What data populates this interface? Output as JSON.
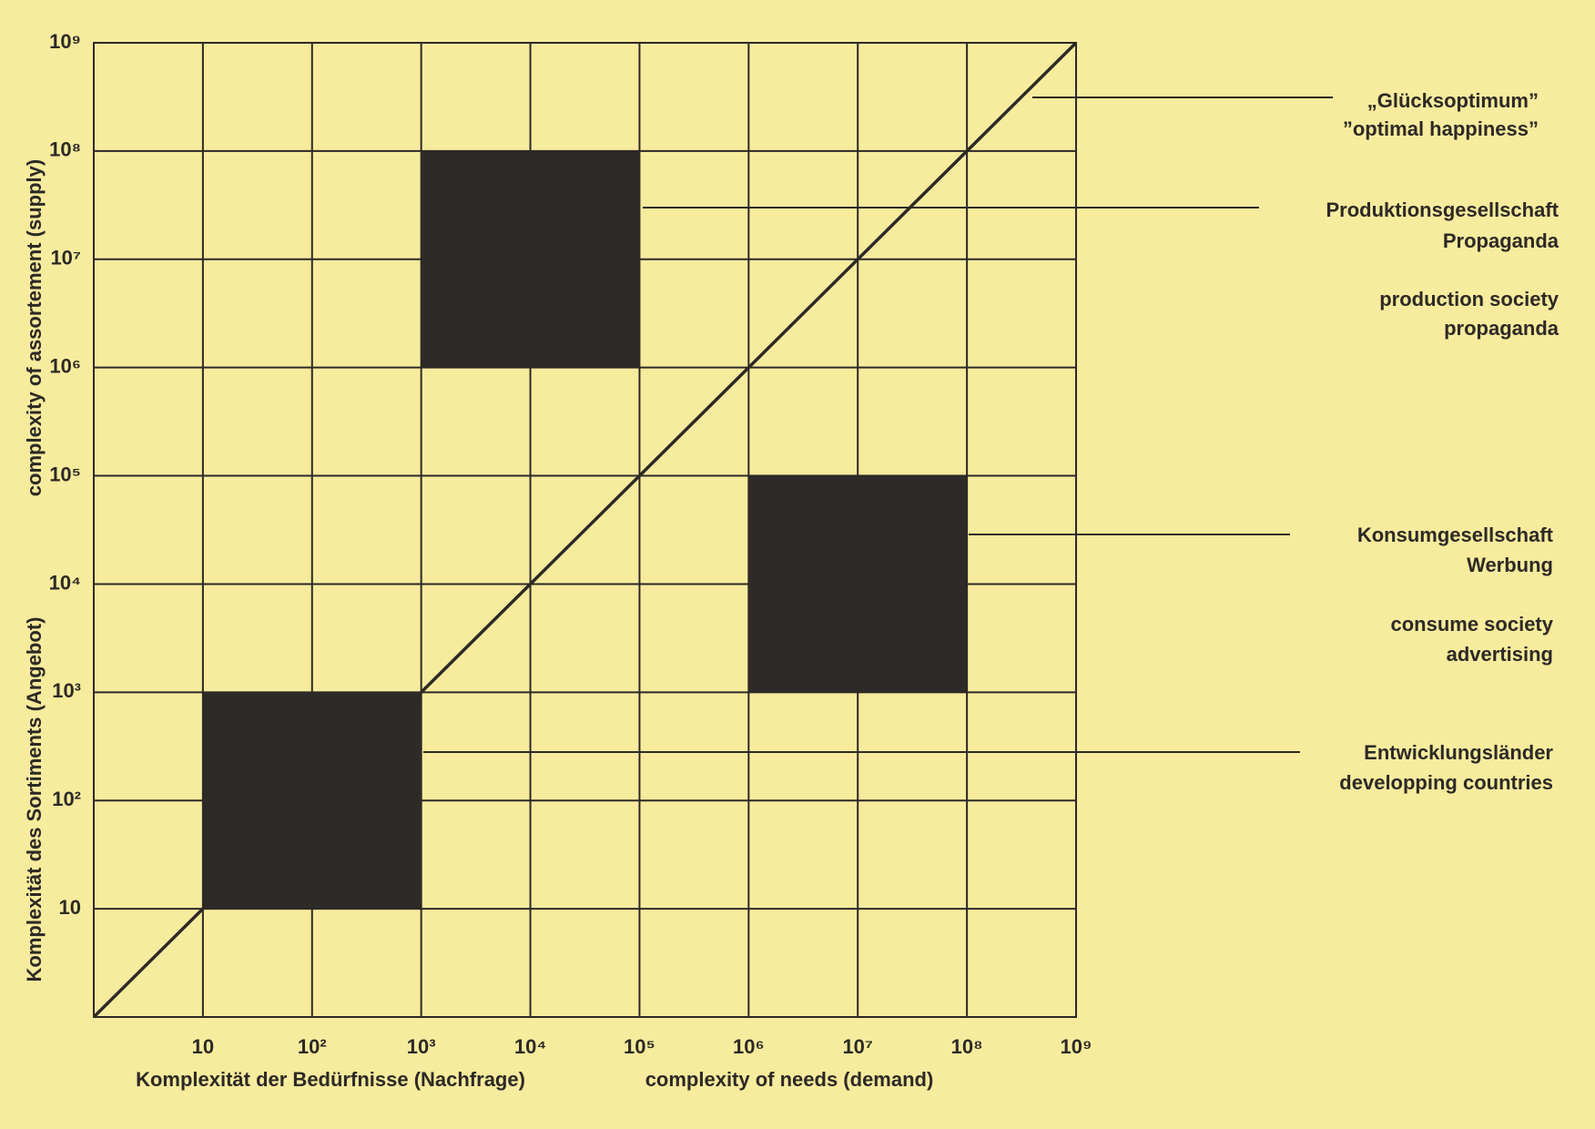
{
  "chart_data": {
    "type": "region",
    "x_label": [
      "Komplexität der Bedürfnisse (Nachfrage)",
      "complexity of needs (demand)"
    ],
    "y_label": [
      "Komplexität des Sortiments (Angebot)",
      "complexity of assortement (supply)"
    ],
    "log_x": true,
    "log_y": true,
    "grid": true,
    "xlim": [
      1,
      1000000000
    ],
    "ylim": [
      1,
      1000000000
    ],
    "xticks": [
      {
        "value": 10,
        "label": "10"
      },
      {
        "value": 100,
        "label": "10²"
      },
      {
        "value": 1000,
        "label": "10³"
      },
      {
        "value": 10000,
        "label": "10⁴"
      },
      {
        "value": 100000,
        "label": "10⁵"
      },
      {
        "value": 1000000,
        "label": "10⁶"
      },
      {
        "value": 10000000,
        "label": "10⁷"
      },
      {
        "value": 100000000,
        "label": "10⁸"
      },
      {
        "value": 1000000000,
        "label": "10⁹"
      }
    ],
    "yticks": [
      {
        "value": 10,
        "label": "10"
      },
      {
        "value": 100,
        "label": "10²"
      },
      {
        "value": 1000,
        "label": "10³"
      },
      {
        "value": 10000,
        "label": "10⁴"
      },
      {
        "value": 100000,
        "label": "10⁵"
      },
      {
        "value": 1000000,
        "label": "10⁶"
      },
      {
        "value": 10000000,
        "label": "10⁷"
      },
      {
        "value": 100000000,
        "label": "10⁸"
      },
      {
        "value": 1000000000,
        "label": "10⁹"
      }
    ],
    "line": {
      "x": [
        1,
        1000000000
      ],
      "y": [
        1,
        1000000000
      ],
      "color": "#2d2925"
    },
    "regions": [
      {
        "x": [
          10,
          1000
        ],
        "y": [
          10,
          1000
        ],
        "color": "#2e2a27"
      },
      {
        "x": [
          1000,
          100000
        ],
        "y": [
          1000000,
          100000000
        ],
        "color": "#2e2a27"
      },
      {
        "x": [
          1000000,
          100000000
        ],
        "y": [
          1000,
          100000
        ],
        "color": "#2e2a27"
      }
    ],
    "annotations": [
      {
        "lines": [
          "„Glücksoptimum”",
          "”optimal happiness”"
        ]
      },
      {
        "lines": [
          "Produktionsgesellschaft",
          "Propaganda"
        ]
      },
      {
        "lines": [
          "production society",
          "propaganda"
        ]
      },
      {
        "lines": [
          "Konsumgesellschaft",
          "Werbung"
        ]
      },
      {
        "lines": [
          "consume society",
          "advertising"
        ]
      },
      {
        "lines": [
          "Entwicklungsländer",
          "developping countries"
        ]
      }
    ]
  }
}
